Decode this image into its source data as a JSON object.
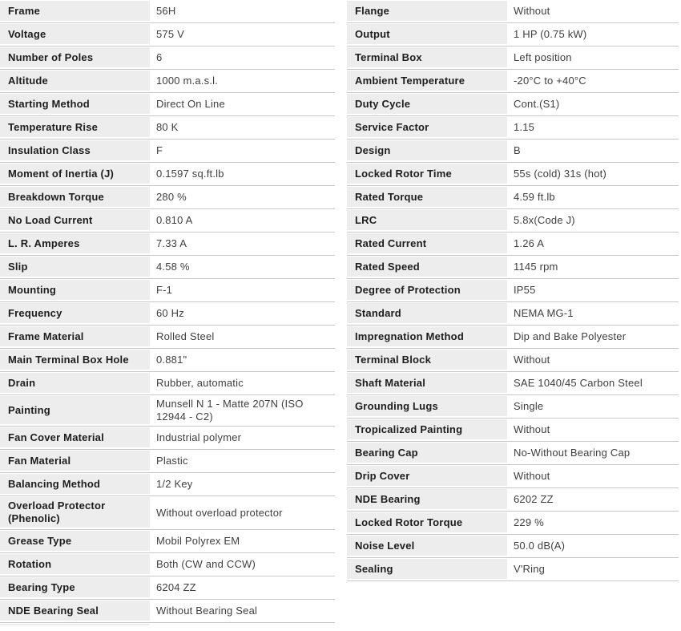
{
  "theme": {
    "label_bg": "#ededed",
    "row_border": "#c7c7c7",
    "label_text": "#1d1d1d",
    "value_text": "#3f3f3f",
    "page_bg": "#ffffff"
  },
  "left_table": {
    "rows": [
      {
        "label": "Frame",
        "value": "56H"
      },
      {
        "label": "Voltage",
        "value": "575 V"
      },
      {
        "label": "Number of Poles",
        "value": "6"
      },
      {
        "label": "Altitude",
        "value": "1000 m.a.s.l."
      },
      {
        "label": "Starting Method",
        "value": "Direct On Line"
      },
      {
        "label": "Temperature Rise",
        "value": "80 K"
      },
      {
        "label": "Insulation Class",
        "value": "F"
      },
      {
        "label": "Moment of Inertia (J)",
        "value": "0.1597 sq.ft.lb"
      },
      {
        "label": "Breakdown Torque",
        "value": "280 %"
      },
      {
        "label": "No Load Current",
        "value": "0.810 A"
      },
      {
        "label": "L. R. Amperes",
        "value": "7.33 A"
      },
      {
        "label": "Slip",
        "value": "4.58 %"
      },
      {
        "label": "Mounting",
        "value": "F-1"
      },
      {
        "label": "Frequency",
        "value": "60 Hz"
      },
      {
        "label": "Frame Material",
        "value": "Rolled Steel"
      },
      {
        "label": "Main Terminal Box Hole",
        "value": "0.881\""
      },
      {
        "label": "Drain",
        "value": "Rubber, automatic"
      },
      {
        "label": "Painting",
        "value": "Munsell N 1 - Matte 207N (ISO 12944 - C2)"
      },
      {
        "label": "Fan Cover Material",
        "value": "Industrial polymer"
      },
      {
        "label": "Fan Material",
        "value": "Plastic"
      },
      {
        "label": "Balancing Method",
        "value": "1/2 Key"
      },
      {
        "label": "Overload Protector (Phenolic)",
        "value": "Without overload protector"
      },
      {
        "label": "Grease Type",
        "value": "Mobil Polyrex EM"
      },
      {
        "label": "Rotation",
        "value": "Both (CW and CCW)"
      },
      {
        "label": "Bearing Type",
        "value": "6204 ZZ"
      },
      {
        "label": "NDE Bearing Seal",
        "value": "Without Bearing Seal"
      }
    ]
  },
  "right_table": {
    "rows": [
      {
        "label": "Flange",
        "value": "Without"
      },
      {
        "label": "Output",
        "value": "1 HP (0.75 kW)"
      },
      {
        "label": "Terminal Box",
        "value": "Left position"
      },
      {
        "label": "Ambient Temperature",
        "value": "-20°C to +40°C"
      },
      {
        "label": "Duty Cycle",
        "value": "Cont.(S1)"
      },
      {
        "label": "Service Factor",
        "value": "1.15"
      },
      {
        "label": "Design",
        "value": "B"
      },
      {
        "label": "Locked Rotor Time",
        "value": "55s (cold) 31s (hot)"
      },
      {
        "label": "Rated Torque",
        "value": "4.59 ft.lb"
      },
      {
        "label": "LRC",
        "value": "5.8x(Code J)"
      },
      {
        "label": "Rated Current",
        "value": "1.26 A"
      },
      {
        "label": "Rated Speed",
        "value": "1145 rpm"
      },
      {
        "label": "Degree of Protection",
        "value": "IP55"
      },
      {
        "label": "Standard",
        "value": "NEMA MG-1"
      },
      {
        "label": "Impregnation Method",
        "value": "Dip and Bake Polyester"
      },
      {
        "label": "Terminal Block",
        "value": "Without"
      },
      {
        "label": "Shaft Material",
        "value": "SAE 1040/45 Carbon Steel"
      },
      {
        "label": "Grounding Lugs",
        "value": "Single"
      },
      {
        "label": "Tropicalized Painting",
        "value": "Without"
      },
      {
        "label": "Bearing Cap",
        "value": "No-Without Bearing Cap"
      },
      {
        "label": "Drip Cover",
        "value": "Without"
      },
      {
        "label": "NDE Bearing",
        "value": "6202 ZZ"
      },
      {
        "label": "Locked Rotor Torque",
        "value": "229 %"
      },
      {
        "label": "Noise Level",
        "value": "50.0 dB(A)"
      },
      {
        "label": "Sealing",
        "value": "V'Ring"
      }
    ]
  }
}
